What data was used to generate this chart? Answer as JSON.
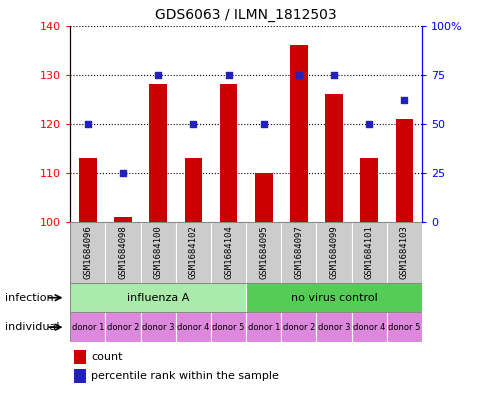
{
  "title": "GDS6063 / ILMN_1812503",
  "samples": [
    "GSM1684096",
    "GSM1684098",
    "GSM1684100",
    "GSM1684102",
    "GSM1684104",
    "GSM1684095",
    "GSM1684097",
    "GSM1684099",
    "GSM1684101",
    "GSM1684103"
  ],
  "count_values": [
    113,
    101,
    128,
    113,
    128,
    110,
    136,
    126,
    113,
    121
  ],
  "percentile_values": [
    50,
    25,
    75,
    50,
    75,
    50,
    75,
    75,
    50,
    62
  ],
  "ylim_left": [
    100,
    140
  ],
  "ylim_right": [
    0,
    100
  ],
  "yticks_left": [
    100,
    110,
    120,
    130,
    140
  ],
  "yticks_right": [
    0,
    25,
    50,
    75,
    100
  ],
  "ytick_labels_left": [
    "100",
    "110",
    "120",
    "130",
    "140"
  ],
  "ytick_labels_right": [
    "0",
    "25",
    "50",
    "75",
    "100%"
  ],
  "infection_groups": [
    {
      "label": "influenza A",
      "start": 0,
      "end": 5,
      "color": "#AAEAAA"
    },
    {
      "label": "no virus control",
      "start": 5,
      "end": 10,
      "color": "#55CC55"
    }
  ],
  "individual_labels": [
    "donor 1",
    "donor 2",
    "donor 3",
    "donor 4",
    "donor 5",
    "donor 1",
    "donor 2",
    "donor 3",
    "donor 4",
    "donor 5"
  ],
  "individual_color": "#DD88DD",
  "bar_color": "#CC0000",
  "dot_color": "#2222BB",
  "sample_bg_color": "#CCCCCC",
  "bar_width": 0.5,
  "baseline": 100,
  "legend_count_label": "count",
  "legend_percentile_label": "percentile rank within the sample",
  "infection_label": "infection",
  "individual_label": "individual",
  "right_top_label": "100%",
  "right_bottom_label": "0"
}
